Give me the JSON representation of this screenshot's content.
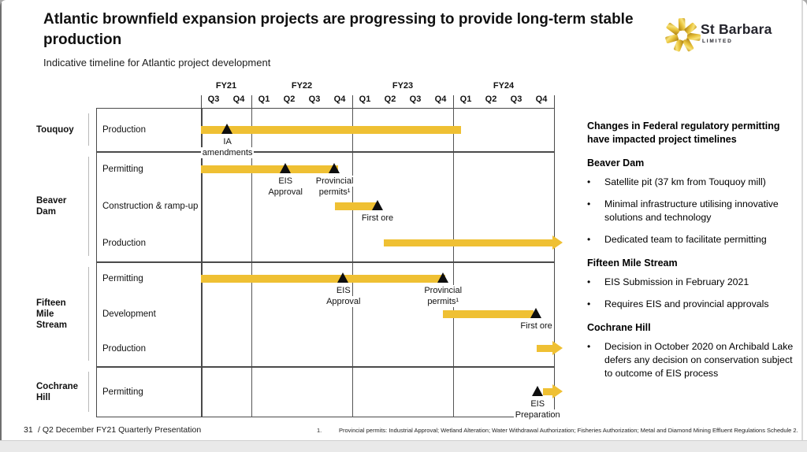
{
  "slide": {
    "title": "Atlantic brownfield expansion projects are progressing to provide long-term stable production",
    "subtitle": "Indicative timeline for Atlantic project development"
  },
  "logo": {
    "name": "St Barbara",
    "suffix": "LIMITED"
  },
  "colors": {
    "bar_yellow": "#EFC033",
    "marker_black": "#0E0E0E",
    "grid": "#4A4A4A"
  },
  "chart_data": {
    "type": "gantt",
    "title": "Indicative timeline for Atlantic project development",
    "x_axis": {
      "fiscal_years": [
        {
          "label": "FY21",
          "quarters": [
            "Q3",
            "Q4"
          ]
        },
        {
          "label": "FY22",
          "quarters": [
            "Q1",
            "Q2",
            "Q3",
            "Q4"
          ]
        },
        {
          "label": "FY23",
          "quarters": [
            "Q1",
            "Q2",
            "Q3",
            "Q4"
          ]
        },
        {
          "label": "FY24",
          "quarters": [
            "Q1",
            "Q2",
            "Q3",
            "Q4"
          ]
        }
      ]
    },
    "groups": [
      {
        "name": "Touquoy",
        "rows": [
          {
            "label": "Production",
            "bar": {
              "start": 0,
              "end": 10.3,
              "style": "bar"
            },
            "milestones": [
              {
                "t": 1.05,
                "lines": [
                  "IA",
                  "amendments"
                ]
              }
            ]
          }
        ]
      },
      {
        "name": "Beaver Dam",
        "rows": [
          {
            "label": "Permitting",
            "bar": {
              "start": 0,
              "end": 5.45,
              "style": "bar"
            },
            "milestones": [
              {
                "t": 3.35,
                "lines": [
                  "EIS",
                  "Approval"
                ]
              },
              {
                "t": 5.3,
                "lines": [
                  "Provincial",
                  "permits¹"
                ]
              }
            ]
          },
          {
            "label": "Construction & ramp-up",
            "bar": {
              "start": 5.3,
              "end": 7.0,
              "style": "bar"
            },
            "milestones": [
              {
                "t": 7.0,
                "lines": [
                  "First ore"
                ]
              }
            ]
          },
          {
            "label": "Production",
            "bar": {
              "start": 7.25,
              "end": 14.35,
              "style": "arrow"
            },
            "milestones": []
          }
        ]
      },
      {
        "name": "Fifteen Mile Stream",
        "rows": [
          {
            "label": "Permitting",
            "bar": {
              "start": 0,
              "end": 9.7,
              "style": "bar"
            },
            "milestones": [
              {
                "t": 5.65,
                "lines": [
                  "EIS",
                  "Approval"
                ]
              },
              {
                "t": 9.6,
                "lines": [
                  "Provincial",
                  "permits¹"
                ]
              }
            ]
          },
          {
            "label": "Development",
            "bar": {
              "start": 9.6,
              "end": 13.2,
              "style": "bar"
            },
            "milestones": [
              {
                "t": 13.3,
                "lines": [
                  "First ore"
                ]
              }
            ]
          },
          {
            "label": "Production",
            "bar": {
              "start": 13.3,
              "end": 14.35,
              "style": "arrow"
            },
            "milestones": []
          }
        ]
      },
      {
        "name": "Cochrane Hill",
        "rows": [
          {
            "label": "Permitting",
            "bar": {
              "start": 13.55,
              "end": 14.35,
              "style": "arrow"
            },
            "milestones": [
              {
                "t": 13.35,
                "lines": [
                  "EIS",
                  "Preparation"
                ]
              }
            ]
          }
        ]
      }
    ]
  },
  "sidebar": {
    "heading": "Changes in Federal regulatory permitting have impacted project timelines",
    "sections": [
      {
        "title": "Beaver Dam",
        "bullets": [
          "Satellite pit (37 km from Touquoy mill)",
          "Minimal infrastructure utilising innovative solutions and technology",
          "Dedicated team to facilitate permitting"
        ]
      },
      {
        "title": "Fifteen Mile Stream",
        "bullets": [
          "EIS Submission in February 2021",
          "Requires EIS and provincial approvals"
        ]
      },
      {
        "title": "Cochrane Hill",
        "bullets": [
          "Decision in October 2020 on Archibald Lake defers any decision on conservation subject to outcome of EIS process"
        ]
      }
    ]
  },
  "footer": {
    "page": "31",
    "label": "/ Q2 December FY21 Quarterly Presentation",
    "footnote_num": "1.",
    "footnote": "Provincial permits: Industrial Approval; Wetland Alteration; Water Withdrawal Authorization; Fisheries Authorization; Metal and Diamond Mining Effluent Regulations Schedule 2."
  }
}
